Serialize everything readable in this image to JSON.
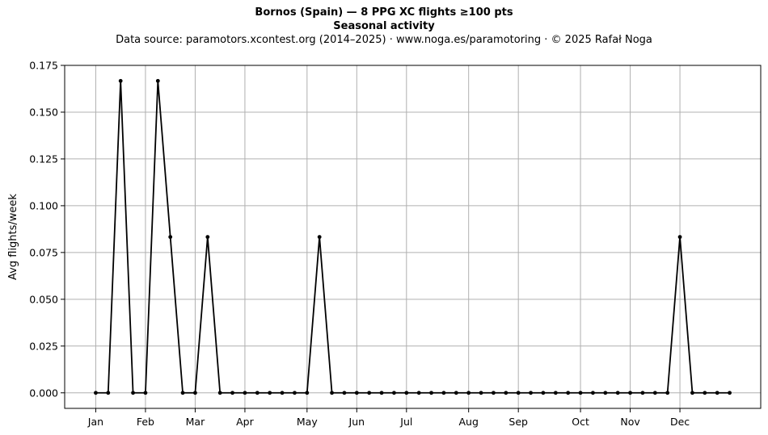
{
  "chart_data": {
    "type": "line",
    "title": "Bornos (Spain)  —  8 PPG XC flights ≥100 pts",
    "subtitle": "Seasonal activity",
    "source_note": "Data source: paramotors.xcontest.org (2014–2025)  ·  www.noga.es/paramotoring  ·  © 2025 Rafał Noga",
    "xlabel": "",
    "ylabel": "Avg flights/week",
    "ylim": [
      -0.0083,
      0.175
    ],
    "yticks": [
      0.0,
      0.025,
      0.05,
      0.075,
      0.1,
      0.125,
      0.15,
      0.175
    ],
    "ytick_labels": [
      "0.000",
      "0.025",
      "0.050",
      "0.075",
      "0.100",
      "0.125",
      "0.150",
      "0.175"
    ],
    "xlim": [
      -2.5,
      53.5
    ],
    "xticks": [
      0,
      4,
      8,
      12,
      17,
      21,
      25,
      30,
      34,
      39,
      43,
      47
    ],
    "xtick_labels": [
      "Jan",
      "Feb",
      "Mar",
      "Apr",
      "May",
      "Jun",
      "Jul",
      "Aug",
      "Sep",
      "Oct",
      "Nov",
      "Dec"
    ],
    "grid": true,
    "color": "#000000",
    "grid_color": "#b0b0b0",
    "series": [
      {
        "name": "",
        "x": [
          0,
          1,
          2,
          3,
          4,
          5,
          6,
          7,
          8,
          9,
          10,
          11,
          12,
          13,
          14,
          15,
          16,
          17,
          18,
          19,
          20,
          21,
          22,
          23,
          24,
          25,
          26,
          27,
          28,
          29,
          30,
          31,
          32,
          33,
          34,
          35,
          36,
          37,
          38,
          39,
          40,
          41,
          42,
          43,
          44,
          45,
          46,
          47,
          48,
          49,
          50,
          51
        ],
        "values": [
          0,
          0,
          0.1667,
          0,
          0,
          0.1667,
          0.0833,
          0,
          0,
          0.0833,
          0,
          0,
          0,
          0,
          0,
          0,
          0,
          0,
          0.0833,
          0,
          0,
          0,
          0,
          0,
          0,
          0,
          0,
          0,
          0,
          0,
          0,
          0,
          0,
          0,
          0,
          0,
          0,
          0,
          0,
          0,
          0,
          0,
          0,
          0,
          0,
          0,
          0,
          0.0833,
          0,
          0,
          0,
          0
        ]
      }
    ]
  }
}
